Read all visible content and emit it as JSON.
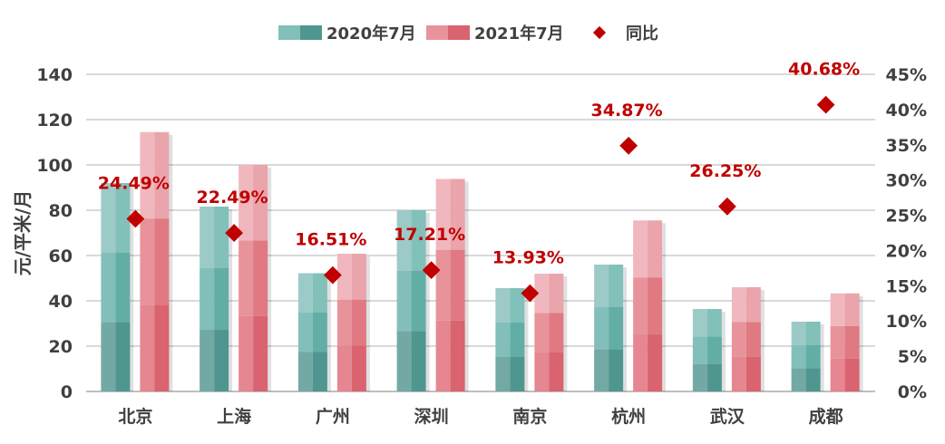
{
  "chart_data": {
    "type": "bar",
    "categories": [
      "北京",
      "上海",
      "广州",
      "深圳",
      "南京",
      "杭州",
      "武汉",
      "成都"
    ],
    "series": [
      {
        "name": "2020年7月",
        "type": "bar",
        "axis": "left",
        "values": [
          92,
          81.6,
          52.2,
          80,
          45.6,
          56,
          36.4,
          30.8
        ]
      },
      {
        "name": "2021年7月",
        "type": "bar",
        "axis": "left",
        "values": [
          114.5,
          100,
          60.8,
          93.8,
          52,
          75.5,
          46,
          43.3
        ]
      },
      {
        "name": "同比",
        "type": "scatter",
        "axis": "right",
        "values": [
          24.49,
          22.49,
          16.51,
          17.21,
          13.93,
          34.87,
          26.25,
          40.68
        ],
        "labels": [
          "24.49%",
          "22.49%",
          "16.51%",
          "17.21%",
          "13.93%",
          "34.87%",
          "26.25%",
          "40.68%"
        ]
      }
    ],
    "ylabel": "元/平米/月",
    "ylim": [
      0,
      140
    ],
    "yticks": [
      "0",
      "20",
      "40",
      "60",
      "80",
      "100",
      "120",
      "140"
    ],
    "y2lim": [
      0,
      45
    ],
    "y2ticks": [
      "0%",
      "5%",
      "10%",
      "15%",
      "20%",
      "25%",
      "30%",
      "35%",
      "40%",
      "45%"
    ],
    "grid": true,
    "legend": "top",
    "colors": {
      "2020": "#62aea7",
      "2021": "#e07982",
      "yoy": "#c00000"
    }
  }
}
